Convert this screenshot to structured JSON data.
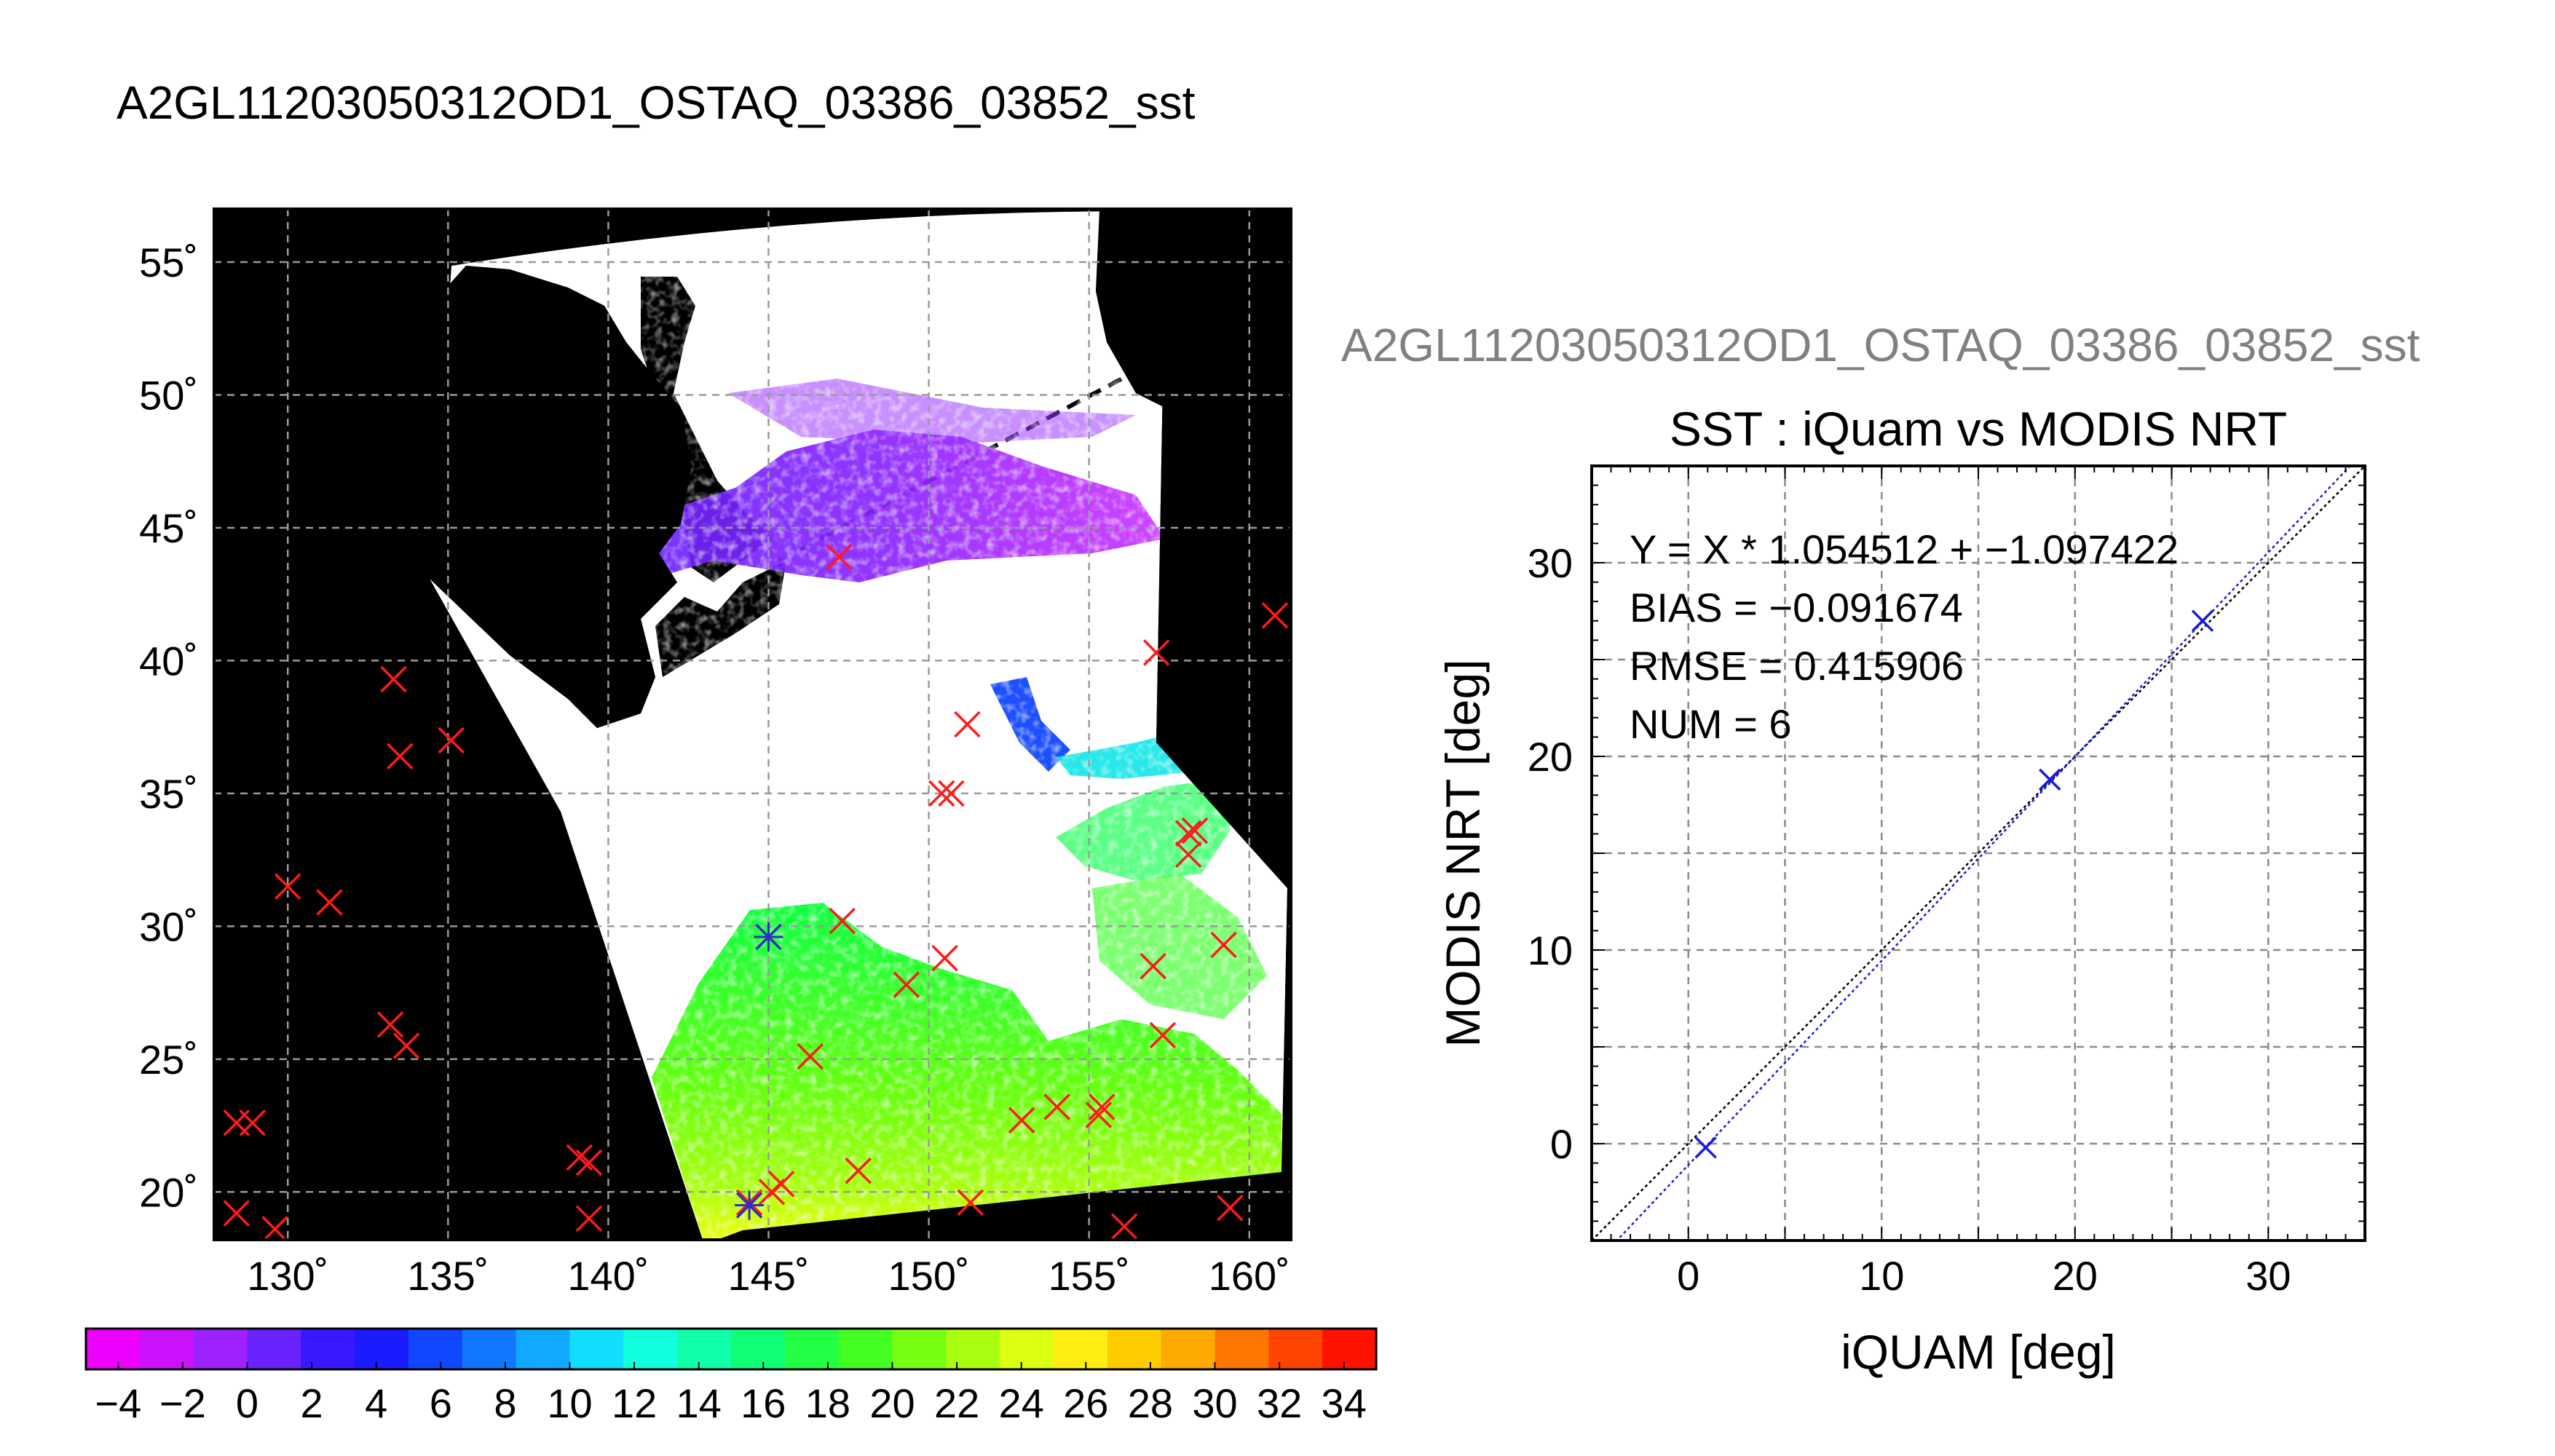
{
  "figure": {
    "main_title": "A2GL11203050312OD1_OSTAQ_03386_03852_sst",
    "right_title": "A2GL11203050312OD1_OSTAQ_03386_03852_sst"
  },
  "chart_data": [
    {
      "type": "map",
      "lat_ticks": [
        "55˚",
        "50˚",
        "45˚",
        "40˚",
        "35˚",
        "30˚",
        "25˚",
        "20˚"
      ],
      "lon_ticks": [
        "130˚",
        "135˚",
        "140˚",
        "145˚",
        "150˚",
        "155˚",
        "160˚"
      ],
      "lat_values": [
        55,
        50,
        45,
        40,
        35,
        30,
        25,
        20
      ],
      "lon_values": [
        130,
        135,
        140,
        145,
        150,
        155,
        160
      ],
      "xlim": [
        127.7,
        161.3
      ],
      "ylim": [
        18.2,
        57.0
      ],
      "grid": true,
      "markers_red": [
        [
          133.3,
          39.3
        ],
        [
          133.5,
          36.4
        ],
        [
          135.1,
          37.0
        ],
        [
          130.0,
          31.5
        ],
        [
          131.3,
          30.9
        ],
        [
          133.2,
          26.3
        ],
        [
          133.7,
          25.5
        ],
        [
          128.4,
          22.6
        ],
        [
          128.9,
          22.6
        ],
        [
          128.4,
          19.2
        ],
        [
          129.6,
          18.6
        ],
        [
          139.1,
          21.3
        ],
        [
          139.4,
          21.1
        ],
        [
          139.4,
          19.0
        ],
        [
          145.4,
          20.3
        ],
        [
          145.1,
          20.0
        ],
        [
          144.4,
          19.6
        ],
        [
          146.3,
          25.1
        ],
        [
          147.3,
          30.2
        ],
        [
          147.8,
          20.8
        ],
        [
          149.3,
          27.8
        ],
        [
          150.4,
          35.0
        ],
        [
          150.7,
          35.0
        ],
        [
          150.5,
          28.8
        ],
        [
          151.2,
          37.6
        ],
        [
          151.3,
          19.6
        ],
        [
          152.9,
          22.7
        ],
        [
          154.0,
          23.2
        ],
        [
          155.4,
          23.2
        ],
        [
          155.3,
          22.9
        ],
        [
          156.1,
          18.7
        ],
        [
          157.0,
          28.5
        ],
        [
          157.1,
          40.3
        ],
        [
          157.3,
          25.9
        ],
        [
          158.1,
          33.5
        ],
        [
          158.3,
          33.6
        ],
        [
          158.1,
          32.7
        ],
        [
          159.2,
          29.3
        ],
        [
          159.4,
          19.4
        ],
        [
          160.8,
          41.7
        ],
        [
          147.2,
          43.9
        ]
      ],
      "markers_blue": [
        [
          145.0,
          29.6
        ],
        [
          144.4,
          19.5
        ]
      ]
    },
    {
      "type": "colorbar",
      "tick_labels": [
        "−4",
        "−2",
        "0",
        "2",
        "4",
        "6",
        "8",
        "10",
        "12",
        "14",
        "16",
        "18",
        "20",
        "22",
        "24",
        "26",
        "28",
        "30",
        "32",
        "34"
      ],
      "range": [
        -5,
        35
      ],
      "colors": [
        "#ee00ff",
        "#cc11ff",
        "#9e22ff",
        "#6a22ff",
        "#3a18ff",
        "#1a1cff",
        "#1148ff",
        "#1177ff",
        "#11a8ff",
        "#11ddff",
        "#11ffdd",
        "#11ffaa",
        "#11ff77",
        "#22ff44",
        "#44ff22",
        "#77ff11",
        "#aaff11",
        "#ddff11",
        "#ffee11",
        "#ffcc00",
        "#ffaa00",
        "#ff7700",
        "#ff4400",
        "#ff1100"
      ]
    },
    {
      "type": "scatter",
      "title": "SST : iQuam vs MODIS NRT",
      "xlabel": "iQUAM [deg]",
      "ylabel": "MODIS NRT [deg]",
      "xlim": [
        -5,
        35
      ],
      "ylim": [
        -5,
        35
      ],
      "x_ticks": [
        0,
        10,
        20,
        30
      ],
      "y_ticks": [
        0,
        10,
        20,
        30
      ],
      "grid": true,
      "points": [
        {
          "x": 0.9,
          "y": -0.2
        },
        {
          "x": 18.7,
          "y": 18.8
        },
        {
          "x": 26.6,
          "y": 27.0
        }
      ],
      "fit": {
        "slope": 1.054512,
        "intercept": -1.097422
      },
      "annotations": [
        "Y = X * 1.054512 + −1.097422",
        "BIAS = −0.091674",
        "RMSE = 0.415906",
        "NUM = 6"
      ]
    }
  ]
}
